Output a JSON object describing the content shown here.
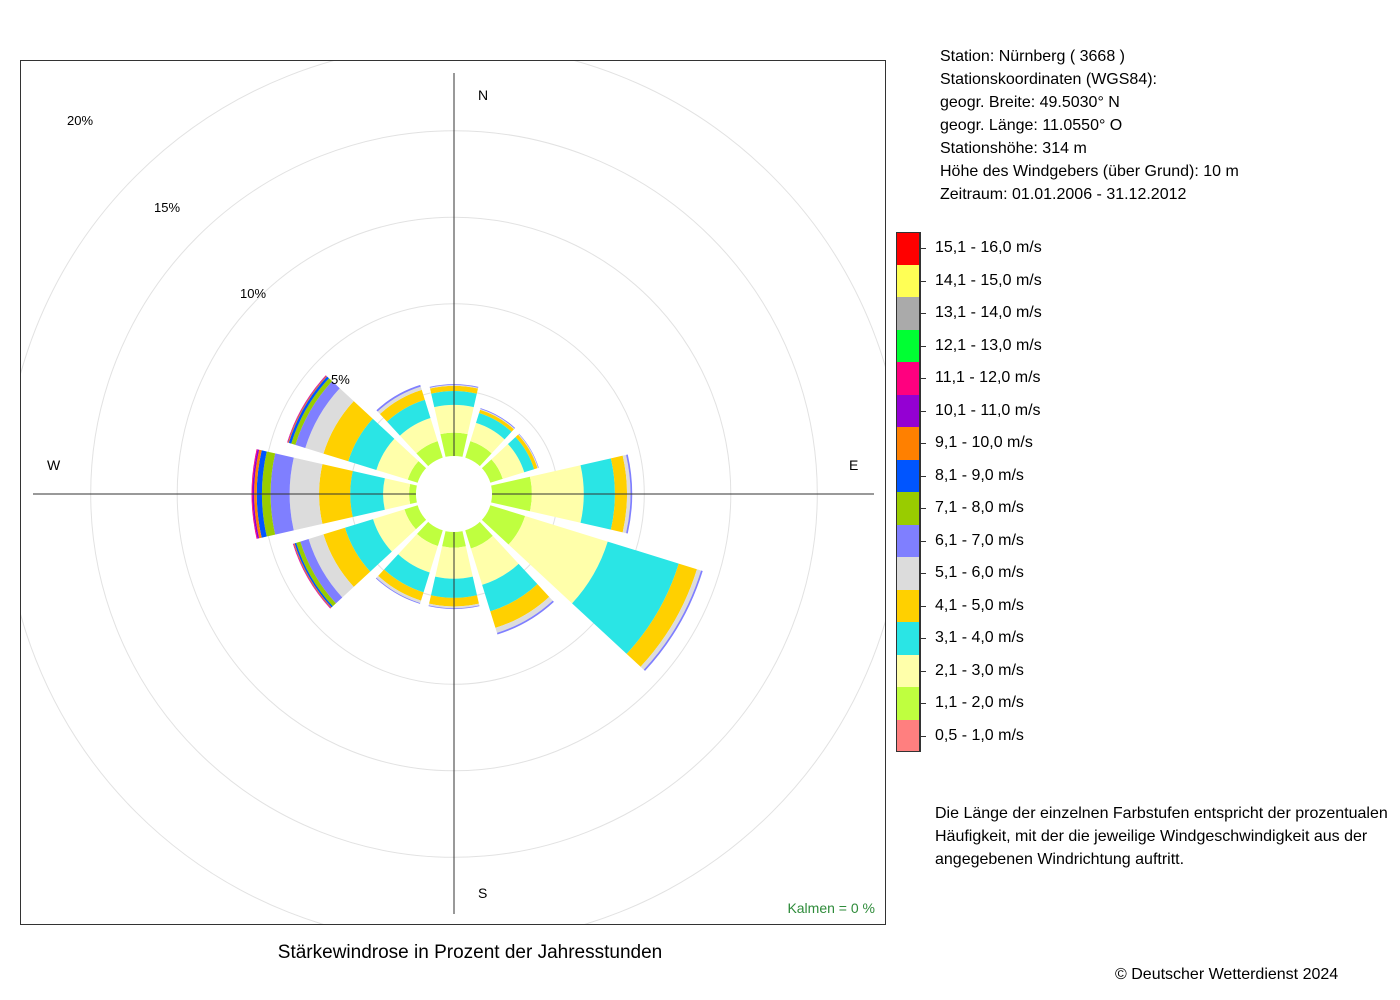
{
  "station": {
    "line1": "Station:  Nürnberg  ( 3668 )",
    "line2": "Stationskoordinaten (WGS84):",
    "line3": "geogr. Breite: 49.5030° N",
    "line4": "geogr. Länge: 11.0550° O",
    "line5": "Stationshöhe: 314 m",
    "line6": "Höhe des Windgebers (über Grund): 10 m",
    "line7": "Zeitraum: 01.01.2006 - 31.12.2012"
  },
  "note": "Die Länge der einzelnen Farbstufen entspricht der prozentualen Häufigkeit, mit der die jeweilige Windgeschwindigkeit aus der angegebenen Windrichtung auftritt.",
  "copyright": "© Deutscher Wetterdienst  2024",
  "chart_data": {
    "type": "wind_rose",
    "title": "Stärkewindrose in Prozent der Jahresstunden",
    "calm_label": "Kalmen  =  0 %",
    "directions": [
      "N",
      "NNO",
      "ONO",
      "O",
      "OSO",
      "SSO",
      "S",
      "SSW",
      "WSW",
      "W",
      "WNW",
      "NNW"
    ],
    "direction_angles_deg": [
      0,
      30,
      60,
      90,
      120,
      150,
      180,
      210,
      240,
      270,
      300,
      330
    ],
    "axis_labels": {
      "north": "N",
      "east": "E",
      "south": "S",
      "west": "W"
    },
    "rings": [
      {
        "value": 5,
        "label": "5%"
      },
      {
        "value": 10,
        "label": "10%"
      },
      {
        "value": 15,
        "label": "15%"
      },
      {
        "value": 20,
        "label": "20%"
      },
      {
        "value": 25,
        "label": ""
      }
    ],
    "radial_offset_percent": 1,
    "classes": [
      {
        "label": "0,5 - 1,0 m/s",
        "color": "#ff7f7f"
      },
      {
        "label": "1,1 - 2,0 m/s",
        "color": "#bfff3f"
      },
      {
        "label": "2,1 - 3,0 m/s",
        "color": "#ffffaa"
      },
      {
        "label": "3,1 - 4,0 m/s",
        "color": "#2ae5e5"
      },
      {
        "label": "4,1 - 5,0 m/s",
        "color": "#ffd000"
      },
      {
        "label": "5,1 - 6,0 m/s",
        "color": "#dcdcdc"
      },
      {
        "label": "6,1 - 7,0 m/s",
        "color": "#7f7fff"
      },
      {
        "label": "7,1 - 8,0 m/s",
        "color": "#99cc00"
      },
      {
        "label": "8,1 - 9,0 m/s",
        "color": "#0055ff"
      },
      {
        "label": "9,1 - 10,0 m/s",
        "color": "#ff8000"
      },
      {
        "label": "10,1 - 11,0 m/s",
        "color": "#9400d3"
      },
      {
        "label": "11,1 - 12,0 m/s",
        "color": "#ff007f"
      },
      {
        "label": "12,1 - 13,0 m/s",
        "color": "#00ff33"
      },
      {
        "label": "13,1 - 14,0 m/s",
        "color": "#aaaaaa"
      },
      {
        "label": "14,1 - 15,0 m/s",
        "color": "#ffff55"
      },
      {
        "label": "15,1 - 16,0 m/s",
        "color": "#ff0000"
      }
    ],
    "values": [
      [
        0.85,
        1.7,
        1.6,
        0.8,
        0.3,
        0.05,
        0.05,
        0,
        0,
        0,
        0,
        0,
        0,
        0,
        0,
        0
      ],
      [
        0.9,
        1.3,
        1.1,
        0.6,
        0.2,
        0.05,
        0.05,
        0,
        0,
        0,
        0,
        0,
        0,
        0,
        0,
        0
      ],
      [
        0.75,
        1.2,
        1.3,
        0.6,
        0.2,
        0.05,
        0.03,
        0,
        0,
        0,
        0,
        0,
        0,
        0,
        0,
        0
      ],
      [
        0.9,
        2.6,
        3.0,
        1.8,
        0.7,
        0.2,
        0.1,
        0,
        0,
        0,
        0,
        0,
        0,
        0,
        0,
        0
      ],
      [
        0.9,
        2.4,
        5.0,
        4.3,
        1.1,
        0.25,
        0.1,
        0,
        0,
        0,
        0,
        0,
        0,
        0,
        0,
        0
      ],
      [
        0.7,
        1.6,
        2.2,
        1.6,
        1.0,
        0.3,
        0.1,
        0,
        0,
        0,
        0,
        0,
        0,
        0,
        0,
        0
      ],
      [
        0.7,
        1.4,
        1.8,
        1.1,
        0.5,
        0.1,
        0.05,
        0,
        0,
        0,
        0,
        0,
        0,
        0,
        0,
        0
      ],
      [
        0.85,
        1.3,
        1.6,
        1.2,
        0.5,
        0.15,
        0.05,
        0,
        0,
        0,
        0,
        0,
        0,
        0,
        0,
        0
      ],
      [
        0.7,
        1.3,
        1.9,
        1.7,
        1.3,
        0.9,
        0.5,
        0.25,
        0.1,
        0.05,
        0.03,
        0.02,
        0,
        0,
        0,
        0
      ],
      [
        0.5,
        1.1,
        1.5,
        1.9,
        1.8,
        1.7,
        1.1,
        0.5,
        0.3,
        0.15,
        0.1,
        0.05,
        0,
        0,
        0,
        0
      ],
      [
        0.5,
        1.3,
        1.9,
        1.7,
        1.5,
        1.1,
        0.6,
        0.25,
        0.15,
        0.05,
        0.03,
        0.02,
        0,
        0,
        0,
        0
      ],
      [
        0.8,
        1.4,
        1.4,
        1.1,
        0.6,
        0.2,
        0.1,
        0,
        0,
        0,
        0,
        0,
        0,
        0,
        0,
        0
      ]
    ]
  }
}
